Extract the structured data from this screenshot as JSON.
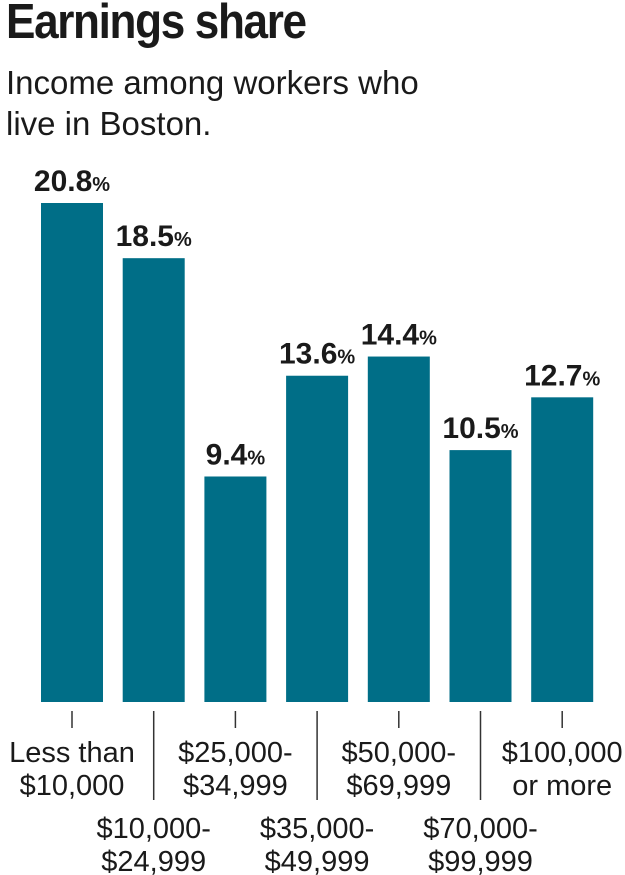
{
  "title": "Earnings share",
  "subtitle": "Income among workers who live in Boston.",
  "colors": {
    "bar": "#006e87",
    "text": "#1a1a1a",
    "tick": "#333333"
  },
  "chart_data": {
    "type": "bar",
    "title": "Earnings share",
    "subtitle": "Income among workers who live in Boston.",
    "xlabel": "",
    "ylabel": "",
    "unit": "%",
    "ylim": [
      0,
      20.8
    ],
    "grid": false,
    "categories": [
      [
        "Less than",
        "$10,000"
      ],
      [
        "$10,000-",
        "$24,999"
      ],
      [
        "$25,000-",
        "$34,999"
      ],
      [
        "$35,000-",
        "$49,999"
      ],
      [
        "$50,000-",
        "$69,999"
      ],
      [
        "$70,000-",
        "$99,999"
      ],
      [
        "$100,000",
        "or more"
      ]
    ],
    "values": [
      20.8,
      18.5,
      9.4,
      13.6,
      14.4,
      10.5,
      12.7
    ],
    "value_labels": [
      "20.8",
      "18.5",
      "9.4",
      "13.6",
      "14.4",
      "10.5",
      "12.7"
    ]
  }
}
